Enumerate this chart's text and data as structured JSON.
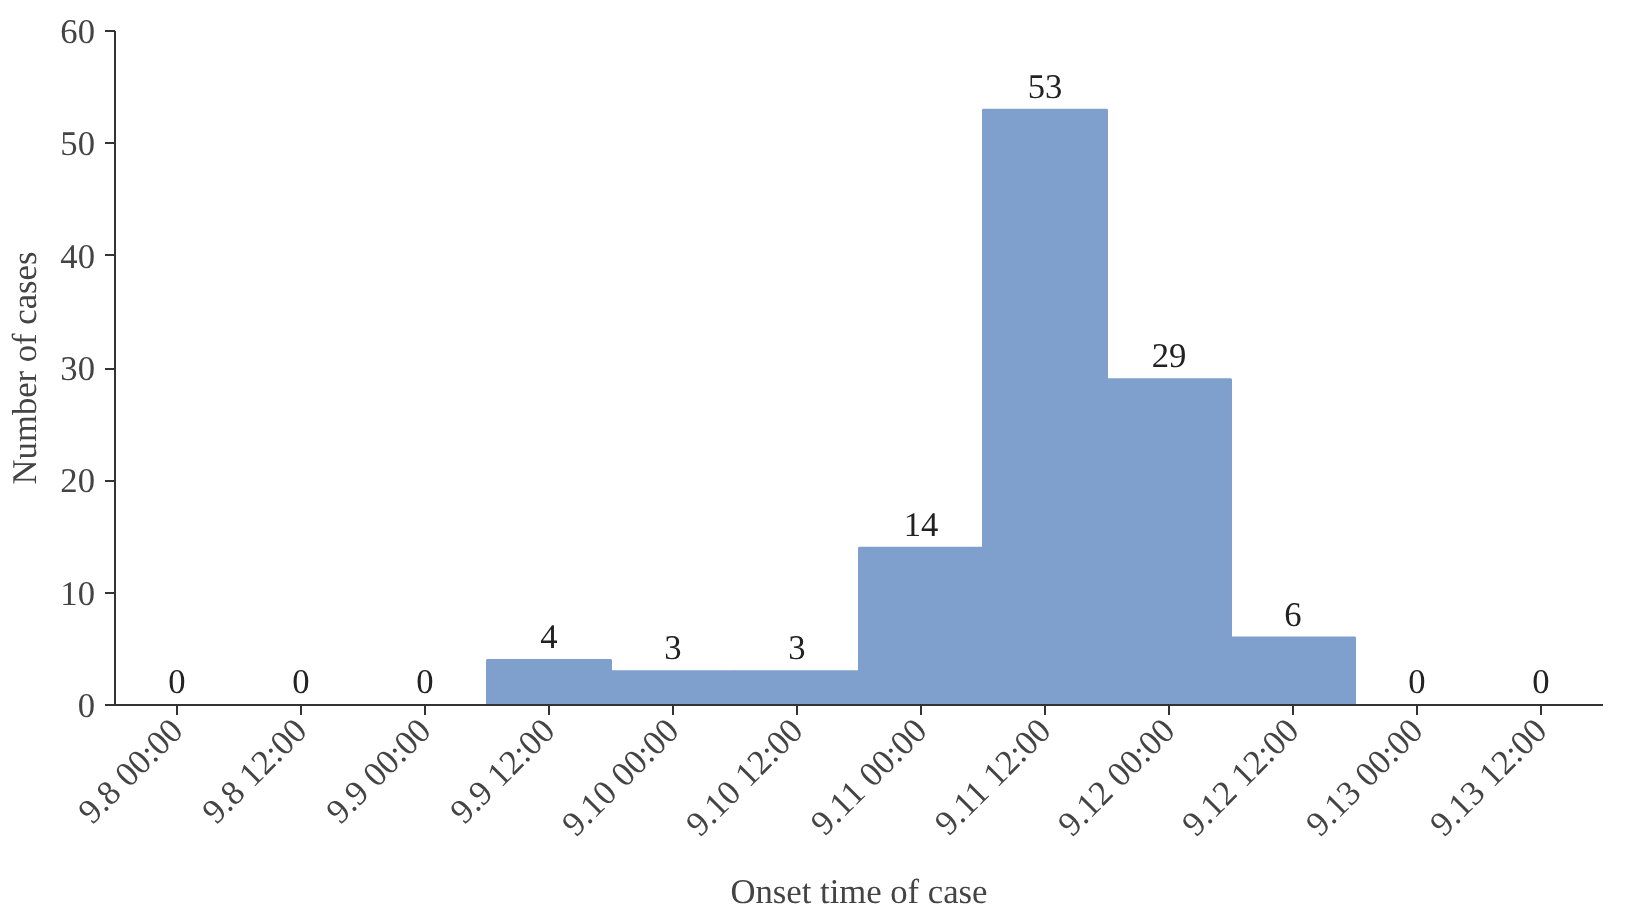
{
  "chart_data": {
    "type": "bar",
    "xlabel": "Onset time of case",
    "ylabel": "Number of cases",
    "categories": [
      "9.8 00:00",
      "9.8 12:00",
      "9.9 00:00",
      "9.9 12:00",
      "9.10 00:00",
      "9.10 12:00",
      "9.11 00:00",
      "9.11 12:00",
      "9.12 00:00",
      "9.12 12:00",
      "9.13 00:00",
      "9.13 12:00"
    ],
    "values": [
      0,
      0,
      0,
      4,
      3,
      3,
      14,
      53,
      29,
      6,
      0,
      0
    ],
    "color": "#7f9fcc",
    "ylim": [
      0,
      60
    ],
    "yticks": [
      0,
      10,
      20,
      30,
      40,
      50,
      60
    ],
    "data_labels": true,
    "grid": false
  }
}
